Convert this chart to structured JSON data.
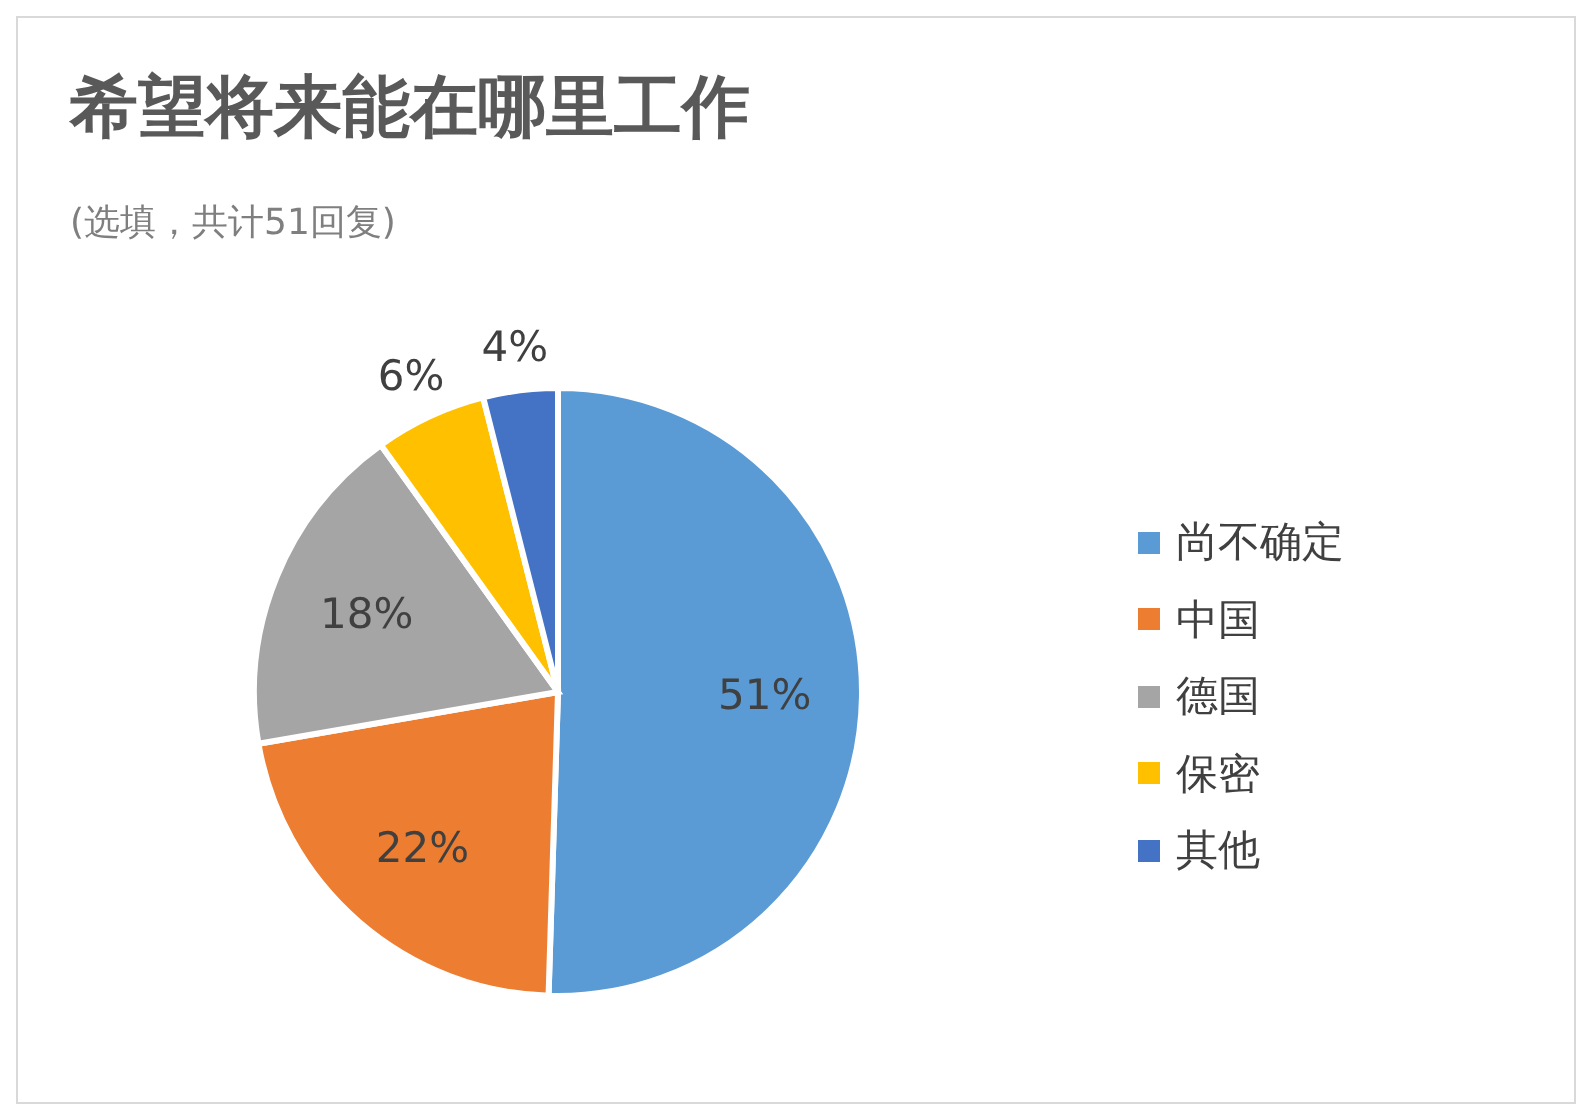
{
  "chart_data": {
    "type": "pie",
    "title": "希望将来能在哪里工作",
    "subtitle": "(选填，共计51回复)",
    "categories": [
      "尚不确定",
      "中国",
      "德国",
      "保密",
      "其他"
    ],
    "values": [
      51,
      22,
      18,
      6,
      4
    ],
    "value_labels": [
      "51%",
      "22%",
      "18%",
      "6%",
      "4%"
    ],
    "colors": [
      "#5b9bd5",
      "#ed7d31",
      "#a5a5a5",
      "#ffc000",
      "#4472c4"
    ],
    "legend": "right"
  }
}
